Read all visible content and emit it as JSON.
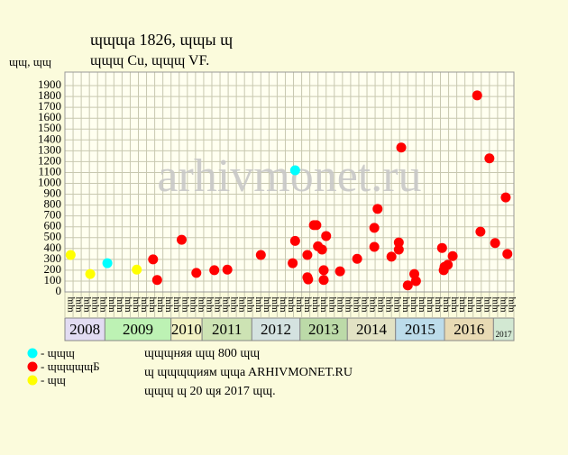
{
  "chart_data": {
    "type": "scatter",
    "title": "ɰɰɰa 1826, ɰɰы ɰ",
    "subtitle": "ɰɰɰ Cu, ɰɰɰ VF.",
    "y_label": "ɰɰ, ɰɰ",
    "watermark": "arhivmonet.ru",
    "ylim": [
      0,
      2000
    ],
    "yticks": [
      0,
      100,
      200,
      300,
      400,
      500,
      600,
      700,
      800,
      900,
      1000,
      1100,
      1200,
      1300,
      1400,
      1500,
      1600,
      1700,
      1800,
      1900
    ],
    "xlim": [
      0,
      55
    ],
    "grid": true,
    "column_labels": [
      "ɰɰ",
      "ɰɰ",
      "ɰɰ",
      "ɰɰ",
      "ɰɰ",
      "ɰɰ",
      "ɰɰ",
      "ɰɰ",
      "ɰɰ",
      "ɰɰ",
      "ɰɰ",
      "ɰɰ",
      "ɰɰ",
      "ɰɰ",
      "ɰɰ",
      "ɰɰ",
      "ɰɰ",
      "ɰɰ",
      "ɰɰ",
      "ɰɰ",
      "ɰɰ",
      "ɰɰ",
      "ɰɰ",
      "ɰɰ",
      "ɰɰ",
      "ɰɰ",
      "ɰɰ",
      "ɰɰ",
      "ɰɰ",
      "ɰɰ",
      "ɰɰ",
      "ɰɰ",
      "ɰɰ",
      "ɰɰ",
      "ɰɰ",
      "ɰɰ",
      "ɰɰ",
      "ɰɰ",
      "ɰɰ",
      "ɰɰ",
      "ɰɰ",
      "ɰɰ",
      "ɰɰ",
      "ɰɰ",
      "ɰɰ",
      "ɰɰ",
      "ɰɰ",
      "ɰɰ",
      "ɰɰ",
      "ɰɰ",
      "ɰɰ",
      "ɰɰ",
      "ɰɰ",
      "ɰɰ",
      "ɰɰ"
    ],
    "years": [
      {
        "label": "2008",
        "start": 0,
        "end": 4.9,
        "color": "#e2dcf2"
      },
      {
        "label": "2009",
        "start": 4.9,
        "end": 13,
        "color": "#bdf2b4"
      },
      {
        "label": "2010",
        "start": 13,
        "end": 16.8,
        "color": "#f2f2c4"
      },
      {
        "label": "2011",
        "start": 16.8,
        "end": 22.9,
        "color": "#cde3b4"
      },
      {
        "label": "2012",
        "start": 22.9,
        "end": 28.8,
        "color": "#d4e2e0"
      },
      {
        "label": "2013",
        "start": 28.8,
        "end": 34.6,
        "color": "#bcdaa8"
      },
      {
        "label": "2014",
        "start": 34.6,
        "end": 40.5,
        "color": "#e2e2c4"
      },
      {
        "label": "2015",
        "start": 40.5,
        "end": 46.5,
        "color": "#bcdcea"
      },
      {
        "label": "2016",
        "start": 46.5,
        "end": 52.5,
        "color": "#e8dab4"
      },
      {
        "label": "2017",
        "start": 52.5,
        "end": 55,
        "color": "#d2e8d2"
      }
    ],
    "series": [
      {
        "name": "- ɰɰɰ",
        "color": "#00ffff",
        "x": [
          5.2,
          28.2
        ],
        "values": [
          265,
          1120
        ]
      },
      {
        "name": "- ɰɰɰɰɰБ",
        "color": "#ff0000",
        "x": [
          10.8,
          11.3,
          14.3,
          16.1,
          18.3,
          19.9,
          24.0,
          27.9,
          28.2,
          29.7,
          29.7,
          29.8,
          30.5,
          30.8,
          31.0,
          31.5,
          31.7,
          31.7,
          32.0,
          33.7,
          35.8,
          37.9,
          37.9,
          38.3,
          40.0,
          40.9,
          40.9,
          41.2,
          42.0,
          42.8,
          43.0,
          46.2,
          46.4,
          46.5,
          46.9,
          47.5,
          50.5,
          50.9,
          52.0,
          52.7,
          54.0,
          54.2
        ],
        "values": [
          300,
          110,
          480,
          175,
          200,
          205,
          340,
          265,
          470,
          340,
          135,
          115,
          615,
          615,
          420,
          390,
          200,
          110,
          515,
          190,
          305,
          590,
          415,
          765,
          325,
          390,
          455,
          1330,
          60,
          165,
          100,
          405,
          200,
          230,
          250,
          330,
          1810,
          555,
          1230,
          450,
          870,
          350
        ]
      },
      {
        "name": "- ɰɰ",
        "color": "#ffff00",
        "x": [
          0.7,
          3.1,
          8.8
        ],
        "values": [
          340,
          165,
          205
        ]
      }
    ],
    "notes": [
      "ɰɰɰняя ɰɰ 800 ɰɰ",
      "ɰ ɰɰɰɰиям ɰɰa ARHIVMONET.RU",
      "ɰɰɰ ɰ 20 ɰя 2017 ɰɰ."
    ]
  }
}
